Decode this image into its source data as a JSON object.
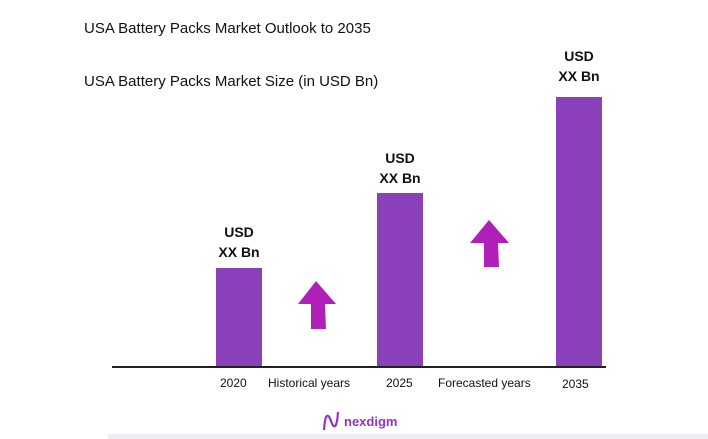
{
  "title": "USA Battery Packs Market Outlook to 2035",
  "subtitle": "USA Battery Packs Market Size (in USD Bn)",
  "colors": {
    "bar": "#8a40b8",
    "arrow": "#b020b8",
    "logo": "#9a30c8"
  },
  "chart_data": {
    "type": "bar",
    "categories": [
      "2020",
      "2025",
      "2035"
    ],
    "data_labels": [
      [
        "USD",
        "XX Bn"
      ],
      [
        "USD",
        "XX Bn"
      ],
      [
        "USD",
        "XX Bn"
      ]
    ],
    "annotations": [
      "Historical years",
      "Forecasted years"
    ],
    "grid": false
  },
  "logo": {
    "text": "nexdigm"
  }
}
